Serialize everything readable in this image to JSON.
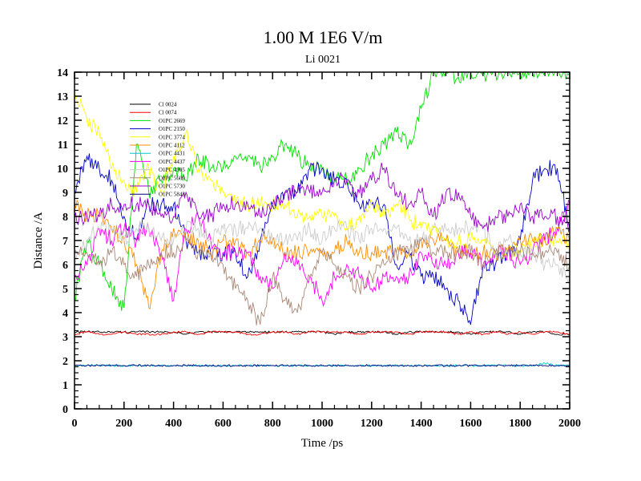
{
  "chart_data": {
    "type": "line",
    "title": "1.00 M 1E6 V/m",
    "subtitle": "Li 0021",
    "xlabel": "Time /ps",
    "ylabel": "Distance /A",
    "xlim": [
      0,
      2000
    ],
    "ylim": [
      0,
      14
    ],
    "xticks": [
      "0",
      "200",
      "400",
      "600",
      "800",
      "1000",
      "1200",
      "1400",
      "1600",
      "1800",
      "2000"
    ],
    "yticks": [
      "0",
      "1",
      "2",
      "3",
      "4",
      "5",
      "6",
      "7",
      "8",
      "9",
      "10",
      "11",
      "12",
      "13",
      "14"
    ],
    "legend_position": "upper-left",
    "x": [
      0,
      50,
      100,
      150,
      200,
      250,
      300,
      350,
      400,
      450,
      500,
      550,
      600,
      650,
      700,
      750,
      800,
      850,
      900,
      950,
      1000,
      1050,
      1100,
      1150,
      1200,
      1250,
      1300,
      1350,
      1400,
      1450,
      1500,
      1550,
      1600,
      1650,
      1700,
      1750,
      1800,
      1850,
      1900,
      1950,
      2000
    ],
    "series": [
      {
        "name": "Cl 0024",
        "color": "#000000",
        "values": [
          3.2,
          3.2,
          3.2,
          3.2,
          3.2,
          3.2,
          3.2,
          3.2,
          3.2,
          3.1,
          3.2,
          3.2,
          3.2,
          3.2,
          3.2,
          3.2,
          3.2,
          3.2,
          3.2,
          3.2,
          3.2,
          3.1,
          3.2,
          3.2,
          3.2,
          3.2,
          3.1,
          3.2,
          3.2,
          3.2,
          3.2,
          3.2,
          3.1,
          3.2,
          3.2,
          3.2,
          3.1,
          3.2,
          3.2,
          3.1,
          3.1
        ]
      },
      {
        "name": "Cl 0074",
        "color": "#ff0000",
        "values": [
          3.1,
          3.2,
          3.1,
          3.1,
          3.2,
          3.1,
          3.1,
          3.1,
          3.2,
          3.2,
          3.1,
          3.2,
          3.2,
          3.2,
          3.1,
          3.1,
          3.2,
          3.2,
          3.1,
          3.2,
          3.2,
          3.2,
          3.2,
          3.1,
          3.2,
          3.2,
          3.2,
          3.1,
          3.2,
          3.2,
          3.2,
          3.1,
          3.2,
          3.1,
          3.2,
          3.1,
          3.2,
          3.1,
          3.2,
          3.2,
          3.1
        ]
      },
      {
        "name": "O1PC 2669",
        "color": "#00e000",
        "values": [
          4.5,
          7.0,
          6.0,
          5.0,
          4.2,
          11.0,
          9.0,
          9.5,
          10.0,
          9.5,
          10.5,
          10.0,
          10.0,
          10.5,
          10.5,
          10.0,
          10.5,
          11.0,
          10.5,
          10.0,
          10.0,
          9.5,
          9.5,
          10.0,
          10.5,
          11.0,
          11.5,
          11.0,
          12.5,
          14.0,
          14.0,
          13.8,
          14.0,
          13.9,
          14.0,
          14.0,
          14.0,
          14.0,
          14.0,
          14.0,
          14.0
        ]
      },
      {
        "name": "O1PC 2150",
        "color": "#0000cc",
        "values": [
          9.0,
          10.5,
          10.0,
          9.5,
          8.0,
          7.0,
          8.5,
          8.5,
          8.5,
          7.0,
          6.5,
          6.5,
          6.5,
          6.5,
          5.5,
          7.0,
          8.5,
          9.0,
          9.0,
          10.0,
          10.0,
          9.5,
          9.5,
          8.5,
          8.5,
          8.5,
          6.0,
          6.5,
          5.5,
          5.5,
          5.0,
          4.5,
          3.5,
          6.0,
          6.0,
          6.5,
          7.0,
          9.5,
          10.0,
          10.0,
          7.5
        ]
      },
      {
        "name": "O1PC 3774",
        "color": "#ffff00",
        "values": [
          13.2,
          12.0,
          11.5,
          10.0,
          9.5,
          9.0,
          10.0,
          9.0,
          10.5,
          11.5,
          10.0,
          9.5,
          9.0,
          8.5,
          8.5,
          8.5,
          8.5,
          8.5,
          8.0,
          8.0,
          8.0,
          8.0,
          7.5,
          8.0,
          8.5,
          8.0,
          8.5,
          8.0,
          7.5,
          7.5,
          7.0,
          7.0,
          7.0,
          7.0,
          6.5,
          6.5,
          6.5,
          7.0,
          7.0,
          7.0,
          7.0
        ]
      },
      {
        "name": "O1PC 4112",
        "color": "#ff8c00",
        "values": [
          8.5,
          8.0,
          8.0,
          7.5,
          7.0,
          6.0,
          4.2,
          6.5,
          7.5,
          7.0,
          7.0,
          6.5,
          7.0,
          7.0,
          6.5,
          7.0,
          7.0,
          6.5,
          6.5,
          6.5,
          6.5,
          6.5,
          7.0,
          6.5,
          6.5,
          6.5,
          6.5,
          6.5,
          7.0,
          7.0,
          7.0,
          6.5,
          6.5,
          6.5,
          6.5,
          6.5,
          7.0,
          7.0,
          7.0,
          7.5,
          7.0
        ]
      },
      {
        "name": "O1PC 4431",
        "color": "#00cccc",
        "values": [
          1.8,
          1.8,
          1.8,
          1.8,
          1.8,
          1.8,
          1.8,
          1.8,
          1.8,
          1.8,
          1.8,
          1.8,
          1.8,
          1.8,
          1.8,
          1.8,
          1.8,
          1.8,
          1.8,
          1.8,
          1.8,
          1.8,
          1.8,
          1.8,
          1.8,
          1.8,
          1.8,
          1.8,
          1.8,
          1.8,
          1.8,
          1.8,
          1.8,
          1.8,
          1.8,
          1.8,
          1.8,
          1.8,
          1.9,
          1.8,
          1.8
        ]
      },
      {
        "name": "O1PC 4437",
        "color": "#ff00ff",
        "values": [
          5.5,
          6.0,
          7.5,
          7.0,
          7.5,
          7.0,
          7.5,
          6.5,
          4.5,
          7.5,
          8.0,
          7.0,
          6.5,
          6.5,
          6.5,
          5.5,
          5.0,
          6.5,
          6.0,
          5.5,
          4.5,
          5.5,
          6.0,
          5.5,
          5.0,
          5.5,
          5.5,
          5.5,
          6.5,
          6.0,
          6.0,
          6.5,
          6.5,
          6.0,
          6.5,
          6.5,
          6.0,
          6.5,
          7.0,
          7.5,
          8.5
        ]
      },
      {
        "name": "O1PC 4905",
        "color": "#cccccc",
        "values": [
          6.0,
          7.0,
          7.5,
          7.5,
          7.0,
          7.5,
          7.5,
          7.0,
          7.0,
          7.5,
          7.5,
          7.0,
          7.5,
          7.5,
          7.5,
          7.5,
          7.0,
          7.0,
          7.0,
          7.5,
          7.0,
          7.5,
          7.5,
          7.0,
          7.5,
          7.5,
          7.5,
          7.0,
          7.0,
          7.5,
          7.5,
          7.5,
          7.5,
          7.5,
          6.5,
          7.0,
          6.5,
          6.5,
          6.0,
          6.0,
          5.5
        ]
      },
      {
        "name": "O1PC 5609",
        "color": "#aa8877",
        "values": [
          6.5,
          6.5,
          6.0,
          6.5,
          6.0,
          5.5,
          6.0,
          6.5,
          6.5,
          7.0,
          6.5,
          6.5,
          6.0,
          5.0,
          4.5,
          3.5,
          5.5,
          4.5,
          4.0,
          5.5,
          6.5,
          6.0,
          5.5,
          5.0,
          5.5,
          6.0,
          6.5,
          6.5,
          7.0,
          6.5,
          6.5,
          6.5,
          6.5,
          6.0,
          6.5,
          6.5,
          6.5,
          6.5,
          6.5,
          6.5,
          6.0
        ]
      },
      {
        "name": "O1PC 5730",
        "color": "#9900cc",
        "values": [
          8.0,
          8.0,
          8.0,
          8.5,
          8.5,
          8.5,
          8.5,
          8.0,
          8.0,
          9.0,
          8.0,
          8.0,
          8.5,
          8.5,
          8.5,
          8.0,
          8.5,
          9.0,
          9.0,
          9.0,
          9.0,
          9.5,
          9.5,
          9.0,
          9.5,
          10.0,
          9.0,
          8.5,
          9.0,
          8.0,
          9.0,
          9.0,
          8.0,
          7.5,
          8.0,
          8.0,
          8.5,
          8.0,
          8.0,
          8.0,
          7.5
        ]
      },
      {
        "name": "O1PC 5843",
        "color": "#000080",
        "values": [
          1.8,
          1.8,
          1.8,
          1.8,
          1.8,
          1.8,
          1.8,
          1.8,
          1.8,
          1.8,
          1.8,
          1.8,
          1.8,
          1.8,
          1.8,
          1.8,
          1.8,
          1.8,
          1.8,
          1.8,
          1.8,
          1.8,
          1.8,
          1.8,
          1.8,
          1.8,
          1.8,
          1.8,
          1.8,
          1.8,
          1.8,
          1.8,
          1.8,
          1.8,
          1.8,
          1.8,
          1.8,
          1.8,
          1.8,
          1.8,
          1.8
        ]
      }
    ]
  }
}
